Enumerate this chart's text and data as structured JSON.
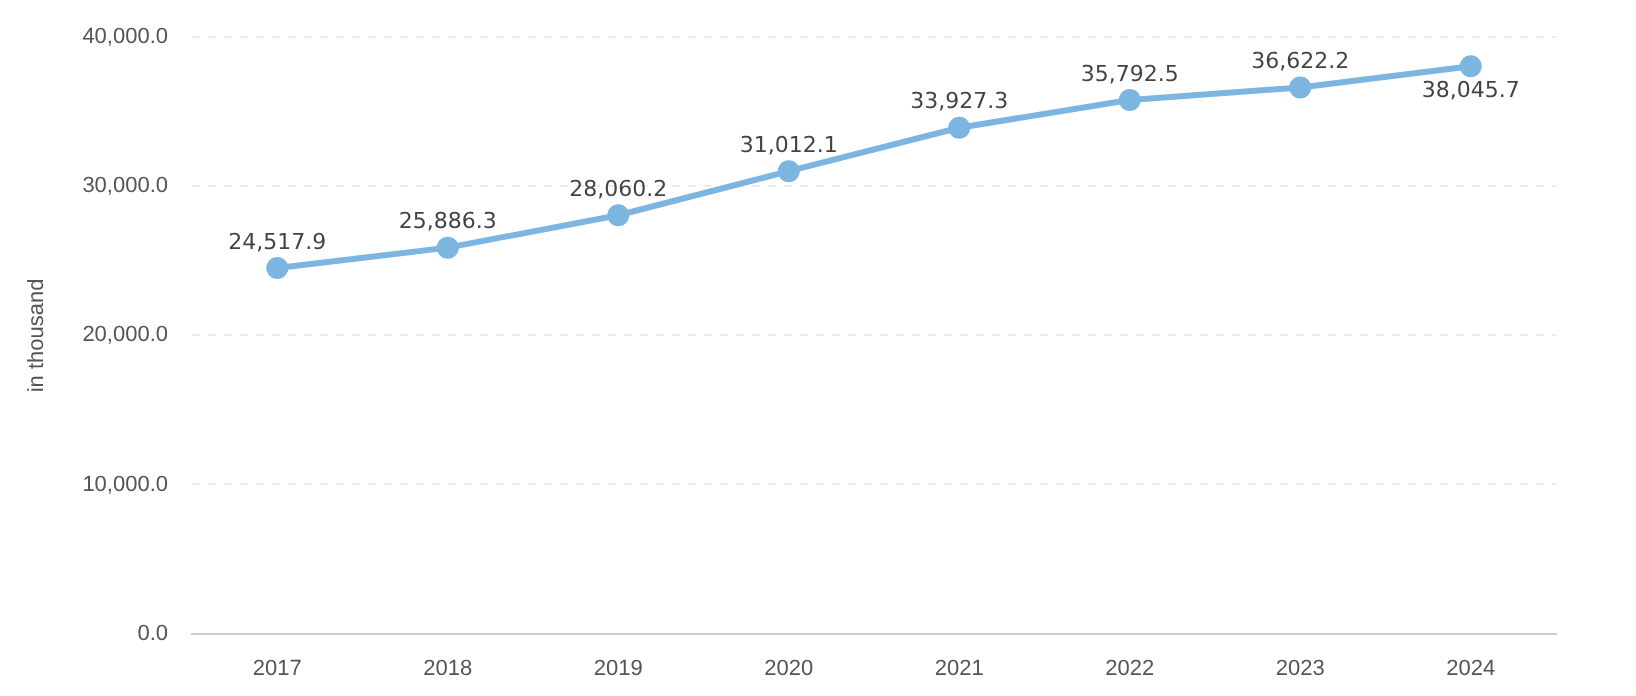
{
  "chart_data": {
    "type": "line",
    "ylabel": "in thousand",
    "categories": [
      "2017",
      "2018",
      "2019",
      "2020",
      "2021",
      "2022",
      "2023",
      "2024"
    ],
    "series": [
      {
        "color": "#7cb5e0",
        "values": [
          24517.9,
          25886.3,
          28060.2,
          31012.1,
          33927.3,
          35792.5,
          36622.2,
          38045.7
        ],
        "value_labels": [
          "24,517.9",
          "25,886.3",
          "28,060.2",
          "31,012.1",
          "33,927.3",
          "35,792.5",
          "36,622.2",
          "38,045.7"
        ]
      }
    ],
    "ylim": [
      0,
      40000
    ],
    "yticks": [
      {
        "value": 0,
        "label": "0.0"
      },
      {
        "value": 10000,
        "label": "10,000.0"
      },
      {
        "value": 20000,
        "label": "20,000.0"
      },
      {
        "value": 30000,
        "label": "30,000.0"
      },
      {
        "value": 40000,
        "label": "40,000.0"
      }
    ],
    "grid": "y",
    "legend": false,
    "marker": "circle",
    "line_style": "solid"
  }
}
